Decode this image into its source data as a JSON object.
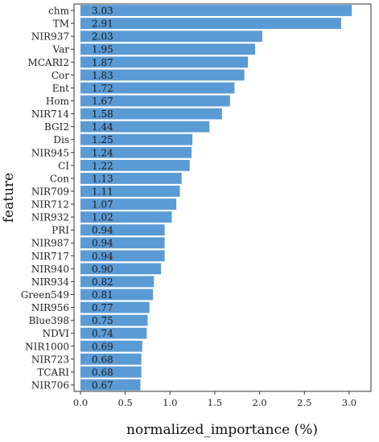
{
  "chart_data": {
    "type": "bar",
    "orientation": "horizontal",
    "xlabel": "normalized_importance (%)",
    "ylabel": "feature",
    "xlim": [
      0,
      3.2
    ],
    "xticks": [
      "0.0",
      "0.5",
      "1.0",
      "1.5",
      "2.0",
      "2.5",
      "3.0"
    ],
    "categories": [
      "chm",
      "TM",
      "NIR937",
      "Var",
      "MCARI2",
      "Cor",
      "Ent",
      "Hom",
      "NIR714",
      "BGI2",
      "Dis",
      "NIR945",
      "CI",
      "Con",
      "NIR709",
      "NIR712",
      "NIR932",
      "PRI",
      "NIR987",
      "NIR717",
      "NIR940",
      "NIR934",
      "Green549",
      "NIR956",
      "Blue398",
      "NDVI",
      "NIR1000",
      "NIR723",
      "TCARI",
      "NIR706"
    ],
    "values": [
      3.03,
      2.91,
      2.03,
      1.95,
      1.87,
      1.83,
      1.72,
      1.67,
      1.58,
      1.44,
      1.25,
      1.24,
      1.22,
      1.13,
      1.11,
      1.07,
      1.02,
      0.94,
      0.94,
      0.94,
      0.9,
      0.82,
      0.81,
      0.77,
      0.75,
      0.74,
      0.69,
      0.68,
      0.68,
      0.67
    ],
    "value_labels": [
      "3.03",
      "2.91",
      "2.03",
      "1.95",
      "1.87",
      "1.83",
      "1.72",
      "1.67",
      "1.58",
      "1.44",
      "1.25",
      "1.24",
      "1.22",
      "1.13",
      "1.11",
      "1.07",
      "1.02",
      "0.94",
      "0.94",
      "0.94",
      "0.90",
      "0.82",
      "0.81",
      "0.77",
      "0.75",
      "0.74",
      "0.69",
      "0.68",
      "0.68",
      "0.67"
    ],
    "bar_color": "#5b9bd5",
    "grid": false
  }
}
